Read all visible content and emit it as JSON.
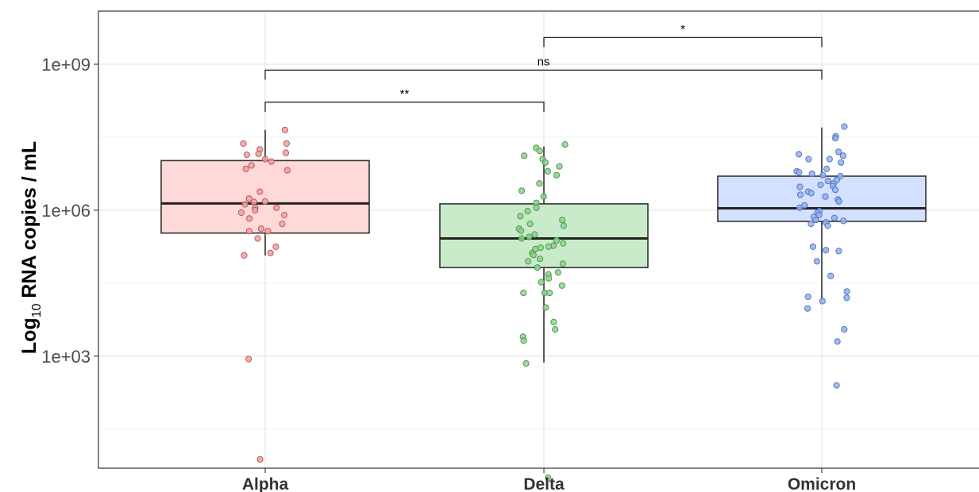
{
  "chart_data": {
    "type": "box",
    "ylabel_main": "Log",
    "ylabel_sub": "10",
    "ylabel_rest": " RNA copies / mL",
    "y_scale": "log10",
    "ylim_log10": [
      0.45,
      10.1
    ],
    "grid": true,
    "y_ticks": [
      {
        "log10": 3,
        "label": "1e+03"
      },
      {
        "log10": 6,
        "label": "1e+06"
      },
      {
        "log10": 9,
        "label": "1e+09"
      }
    ],
    "y_minor_log10": [
      1.5,
      4.5,
      7.5
    ],
    "categories": [
      "Alpha",
      "Delta",
      "Omicron"
    ],
    "series": [
      {
        "category": "Alpha",
        "fill": "#ffd8d8",
        "point_fill": "#f2a0a0",
        "point_stroke": "#b85c5c",
        "box_log10": {
          "min": 5.07,
          "q1": 5.53,
          "median": 6.14,
          "q3": 7.02,
          "max": 7.65
        },
        "points_log10": [
          7.65,
          7.37,
          7.37,
          7.25,
          7.18,
          7.14,
          7.16,
          7.05,
          7.0,
          6.92,
          6.85,
          6.82,
          6.38,
          6.24,
          6.18,
          6.17,
          6.12,
          6.05,
          6.05,
          6.0,
          5.95,
          5.9,
          5.83,
          5.72,
          5.62,
          5.57,
          5.57,
          5.42,
          5.25,
          5.12,
          5.07,
          2.94,
          0.88
        ]
      },
      {
        "category": "Delta",
        "fill": "#c9ebc9",
        "point_fill": "#8fd08f",
        "point_stroke": "#4e9a4e",
        "box_log10": {
          "min": 2.87,
          "q1": 4.82,
          "median": 5.42,
          "q3": 6.13,
          "max": 7.31
        },
        "points_log10": [
          7.35,
          7.28,
          7.22,
          7.12,
          7.05,
          6.98,
          6.9,
          6.8,
          6.72,
          6.55,
          6.4,
          6.28,
          6.15,
          6.05,
          5.98,
          5.88,
          5.8,
          5.72,
          5.68,
          5.62,
          5.58,
          5.5,
          5.45,
          5.42,
          5.38,
          5.32,
          5.27,
          5.25,
          5.23,
          5.2,
          5.12,
          5.08,
          5.0,
          4.95,
          4.9,
          4.82,
          4.72,
          4.68,
          4.6,
          4.52,
          4.45,
          4.3,
          4.3,
          4.3,
          4.0,
          3.7,
          3.55,
          3.4,
          3.32,
          2.85,
          0.5
        ]
      },
      {
        "category": "Omicron",
        "fill": "#d3e0ff",
        "point_fill": "#92b1ee",
        "point_stroke": "#5578c2",
        "box_log10": {
          "min": 4.13,
          "q1": 5.77,
          "median": 6.04,
          "q3": 6.7,
          "max": 7.7
        },
        "points_log10": [
          7.72,
          7.52,
          7.48,
          7.2,
          7.15,
          7.12,
          7.05,
          7.05,
          6.98,
          6.85,
          6.8,
          6.78,
          6.75,
          6.72,
          6.7,
          6.62,
          6.6,
          6.55,
          6.52,
          6.5,
          6.48,
          6.42,
          6.38,
          6.35,
          6.32,
          6.28,
          6.22,
          6.18,
          6.1,
          6.05,
          5.98,
          5.95,
          5.9,
          5.86,
          5.84,
          5.8,
          5.78,
          5.75,
          5.72,
          5.68,
          5.25,
          5.18,
          5.16,
          4.95,
          4.65,
          4.33,
          4.22,
          4.2,
          4.13,
          3.98,
          3.55,
          3.3,
          2.4
        ]
      }
    ],
    "comparisons": [
      {
        "from": "Alpha",
        "to": "Delta",
        "label": "**",
        "y_log10": 8.22
      },
      {
        "from": "Alpha",
        "to": "Omicron",
        "label": "ns",
        "y_log10": 8.88
      },
      {
        "from": "Delta",
        "to": "Omicron",
        "label": "*",
        "y_log10": 9.55
      }
    ]
  }
}
